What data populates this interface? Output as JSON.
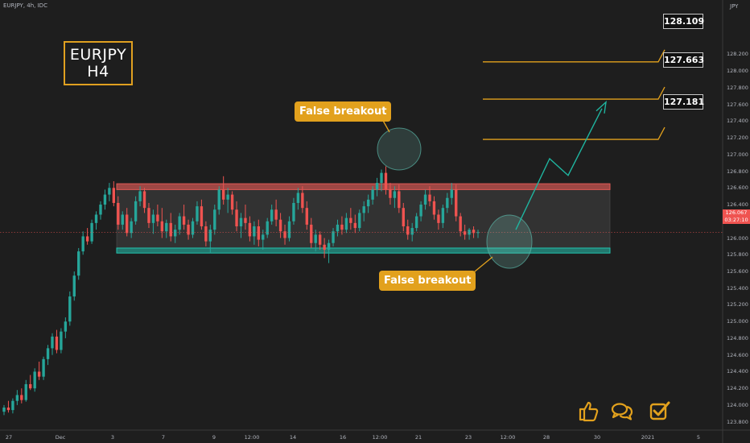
{
  "header": {
    "symbol_line": "EURJPY, 4h, IDC",
    "currency": "JPY"
  },
  "pair_label": {
    "line1": "EURJPY",
    "line2": "H4"
  },
  "annotations": {
    "false_breakout_top": "False breakout",
    "false_breakout_bottom": "False breakout"
  },
  "targets": [
    {
      "label": "128.109",
      "price": 128.109
    },
    {
      "label": "127.663",
      "price": 127.663
    },
    {
      "label": "127.181",
      "price": 127.181
    }
  ],
  "last_price": {
    "price": "126.067",
    "countdown": "03:27:10"
  },
  "colors": {
    "background": "#1e1e1e",
    "bull": "#26a69a",
    "bear": "#ef5350",
    "accent": "#e2a11d",
    "resistance_zone": "#d9534f",
    "support_zone": "#1a9e8f",
    "range_fill": "#3a3a3a",
    "projection": "#1fb5a0"
  },
  "social_icons": [
    "thumbs-up-icon",
    "comments-icon",
    "checkbox-icon"
  ],
  "chart_data": {
    "type": "candlestick",
    "ylim": [
      123.7,
      128.85
    ],
    "y_ticks": [
      "128.200",
      "128.000",
      "127.800",
      "127.600",
      "127.400",
      "127.200",
      "127.000",
      "126.800",
      "126.600",
      "126.400",
      "126.200",
      "126.000",
      "125.800",
      "125.600",
      "125.400",
      "125.200",
      "125.000",
      "124.800",
      "124.600",
      "124.400",
      "124.200",
      "124.000",
      "123.800"
    ],
    "x_ticks": [
      "27",
      "Dec",
      "3",
      "7",
      "9",
      "12:00",
      "14",
      "16",
      "12:00",
      "21",
      "23",
      "12:00",
      "28",
      "30",
      "2021",
      "5"
    ],
    "range_zone": {
      "top": 126.65,
      "bottom": 125.82
    },
    "resistance_band": [
      126.58,
      126.65
    ],
    "support_band": [
      125.82,
      125.88
    ],
    "current_price": 126.067,
    "projected_path": [
      126.1,
      126.95,
      126.75,
      127.55
    ],
    "candles": [
      [
        123.92,
        124.0,
        123.88,
        123.97
      ],
      [
        123.97,
        124.05,
        123.91,
        123.94
      ],
      [
        123.94,
        124.08,
        123.9,
        124.05
      ],
      [
        124.05,
        124.18,
        124.0,
        124.12
      ],
      [
        124.12,
        124.2,
        124.02,
        124.06
      ],
      [
        124.06,
        124.3,
        124.04,
        124.25
      ],
      [
        124.25,
        124.36,
        124.18,
        124.2
      ],
      [
        124.2,
        124.44,
        124.16,
        124.4
      ],
      [
        124.4,
        124.52,
        124.3,
        124.34
      ],
      [
        124.34,
        124.58,
        124.3,
        124.55
      ],
      [
        124.55,
        124.72,
        124.48,
        124.68
      ],
      [
        124.68,
        124.86,
        124.6,
        124.82
      ],
      [
        124.82,
        124.9,
        124.62,
        124.66
      ],
      [
        124.66,
        124.92,
        124.62,
        124.88
      ],
      [
        124.88,
        125.05,
        124.8,
        125.0
      ],
      [
        125.0,
        125.36,
        124.95,
        125.3
      ],
      [
        125.3,
        125.6,
        125.25,
        125.55
      ],
      [
        125.55,
        125.88,
        125.5,
        125.84
      ],
      [
        125.84,
        126.08,
        125.8,
        126.02
      ],
      [
        126.02,
        126.12,
        125.92,
        125.96
      ],
      [
        125.96,
        126.22,
        125.93,
        126.18
      ],
      [
        126.18,
        126.32,
        126.1,
        126.28
      ],
      [
        126.28,
        126.44,
        126.22,
        126.4
      ],
      [
        126.4,
        126.58,
        126.34,
        126.52
      ],
      [
        126.52,
        126.66,
        126.44,
        126.6
      ],
      [
        126.6,
        126.68,
        126.38,
        126.42
      ],
      [
        126.42,
        126.5,
        126.1,
        126.16
      ],
      [
        126.16,
        126.32,
        126.1,
        126.28
      ],
      [
        126.28,
        126.36,
        126.02,
        126.06
      ],
      [
        126.06,
        126.24,
        126.0,
        126.2
      ],
      [
        126.2,
        126.5,
        126.16,
        126.44
      ],
      [
        126.44,
        126.62,
        126.38,
        126.56
      ],
      [
        126.56,
        126.6,
        126.3,
        126.36
      ],
      [
        126.36,
        126.42,
        126.12,
        126.18
      ],
      [
        126.18,
        126.34,
        126.05,
        126.28
      ],
      [
        126.28,
        126.4,
        126.14,
        126.2
      ],
      [
        126.2,
        126.36,
        126.0,
        126.08
      ],
      [
        126.08,
        126.22,
        126.0,
        126.18
      ],
      [
        126.18,
        126.3,
        125.96,
        126.02
      ],
      [
        126.02,
        126.16,
        125.94,
        126.1
      ],
      [
        126.1,
        126.3,
        126.04,
        126.26
      ],
      [
        126.26,
        126.4,
        126.1,
        126.16
      ],
      [
        126.16,
        126.22,
        125.98,
        126.04
      ],
      [
        126.04,
        126.24,
        126.0,
        126.2
      ],
      [
        126.2,
        126.44,
        126.16,
        126.38
      ],
      [
        126.38,
        126.46,
        126.1,
        126.14
      ],
      [
        126.14,
        126.2,
        125.9,
        125.96
      ],
      [
        125.96,
        126.16,
        125.82,
        126.1
      ],
      [
        126.1,
        126.4,
        126.04,
        126.34
      ],
      [
        126.34,
        126.62,
        126.28,
        126.58
      ],
      [
        126.58,
        126.74,
        126.4,
        126.46
      ],
      [
        126.46,
        126.6,
        126.3,
        126.52
      ],
      [
        126.52,
        126.56,
        126.28,
        126.34
      ],
      [
        126.34,
        126.44,
        126.08,
        126.14
      ],
      [
        126.14,
        126.3,
        126.0,
        126.24
      ],
      [
        126.24,
        126.4,
        126.1,
        126.18
      ],
      [
        126.18,
        126.26,
        125.96,
        126.02
      ],
      [
        126.02,
        126.2,
        125.92,
        126.14
      ],
      [
        126.14,
        126.22,
        125.9,
        125.98
      ],
      [
        125.98,
        126.1,
        125.86,
        126.04
      ],
      [
        126.04,
        126.24,
        126.0,
        126.2
      ],
      [
        126.2,
        126.4,
        126.16,
        126.34
      ],
      [
        126.34,
        126.46,
        126.14,
        126.22
      ],
      [
        126.22,
        126.3,
        126.0,
        126.08
      ],
      [
        126.08,
        126.16,
        125.92,
        126.0
      ],
      [
        126.0,
        126.26,
        125.96,
        126.2
      ],
      [
        126.2,
        126.48,
        126.16,
        126.42
      ],
      [
        126.42,
        126.6,
        126.34,
        126.54
      ],
      [
        126.54,
        126.62,
        126.3,
        126.36
      ],
      [
        126.36,
        126.44,
        126.1,
        126.16
      ],
      [
        126.16,
        126.24,
        125.88,
        125.94
      ],
      [
        125.94,
        126.1,
        125.84,
        126.04
      ],
      [
        126.04,
        126.08,
        125.86,
        125.92
      ],
      [
        125.92,
        126.0,
        125.76,
        125.86
      ],
      [
        125.86,
        125.98,
        125.7,
        125.94
      ],
      [
        125.94,
        126.12,
        125.9,
        126.08
      ],
      [
        126.08,
        126.22,
        126.02,
        126.16
      ],
      [
        126.16,
        126.26,
        126.04,
        126.1
      ],
      [
        126.1,
        126.3,
        126.06,
        126.24
      ],
      [
        126.24,
        126.36,
        126.1,
        126.18
      ],
      [
        126.18,
        126.28,
        126.06,
        126.12
      ],
      [
        126.12,
        126.34,
        126.08,
        126.3
      ],
      [
        126.3,
        126.44,
        126.2,
        126.38
      ],
      [
        126.38,
        126.52,
        126.3,
        126.46
      ],
      [
        126.46,
        126.62,
        126.4,
        126.58
      ],
      [
        126.58,
        126.72,
        126.5,
        126.66
      ],
      [
        126.66,
        126.82,
        126.56,
        126.78
      ],
      [
        126.78,
        126.86,
        126.52,
        126.58
      ],
      [
        126.58,
        126.66,
        126.4,
        126.48
      ],
      [
        126.48,
        126.62,
        126.36,
        126.56
      ],
      [
        126.56,
        126.64,
        126.3,
        126.36
      ],
      [
        126.36,
        126.42,
        126.08,
        126.14
      ],
      [
        126.14,
        126.22,
        125.98,
        126.04
      ],
      [
        126.04,
        126.18,
        125.96,
        126.12
      ],
      [
        126.12,
        126.3,
        126.08,
        126.26
      ],
      [
        126.26,
        126.44,
        126.2,
        126.4
      ],
      [
        126.4,
        126.58,
        126.34,
        126.52
      ],
      [
        126.52,
        126.62,
        126.38,
        126.44
      ],
      [
        126.44,
        126.5,
        126.22,
        126.28
      ],
      [
        126.28,
        126.34,
        126.1,
        126.18
      ],
      [
        126.18,
        126.4,
        126.12,
        126.36
      ],
      [
        126.36,
        126.54,
        126.3,
        126.48
      ],
      [
        126.48,
        126.66,
        126.4,
        126.58
      ],
      [
        126.58,
        126.64,
        126.2,
        126.26
      ],
      [
        126.26,
        126.3,
        126.02,
        126.08
      ],
      [
        126.08,
        126.16,
        125.98,
        126.04
      ],
      [
        126.04,
        126.12,
        125.98,
        126.1
      ],
      [
        126.1,
        126.14,
        126.0,
        126.06
      ],
      [
        126.06,
        126.1,
        126.0,
        126.07
      ]
    ]
  }
}
